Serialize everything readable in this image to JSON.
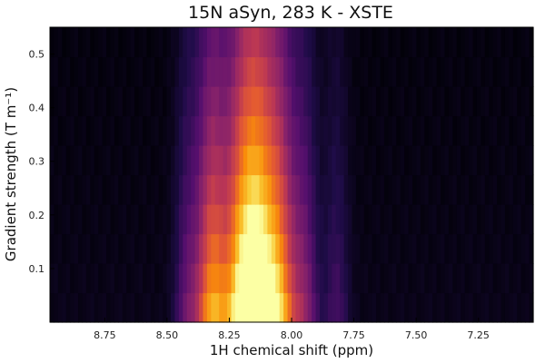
{
  "chart_data": {
    "type": "heatmap",
    "title": "15N aSyn, 283 K - XSTE",
    "xlabel": "1H chemical shift (ppm)",
    "ylabel": "Gradient strength (T m⁻¹)",
    "xlim": [
      8.97,
      7.03
    ],
    "ylim": [
      0.0,
      0.55
    ],
    "x_reversed": true,
    "xticks": [
      8.75,
      8.5,
      8.25,
      8.0,
      7.75,
      7.5,
      7.25
    ],
    "xtick_labels": [
      "8.75",
      "8.50",
      "8.25",
      "8.00",
      "7.75",
      "7.50",
      "7.25"
    ],
    "yticks": [
      0.1,
      0.2,
      0.3,
      0.4,
      0.5
    ],
    "ytick_labels": [
      "0.1",
      "0.2",
      "0.3",
      "0.4",
      "0.5"
    ],
    "gradient_rows": [
      0.0,
      0.055,
      0.11,
      0.165,
      0.22,
      0.275,
      0.33,
      0.385,
      0.44,
      0.495,
      0.55
    ],
    "colormap": "inferno",
    "grid": false,
    "intensity_profile": {
      "peaks_ppm": [
        8.42,
        8.32,
        8.2,
        8.13,
        8.05,
        7.95,
        7.82
      ],
      "peak_heights": [
        0.25,
        0.78,
        0.98,
        0.95,
        0.8,
        0.35,
        0.18
      ],
      "peak_widths_ppm": [
        0.035,
        0.045,
        0.05,
        0.045,
        0.045,
        0.04,
        0.035
      ],
      "decay_per_T_per_m": 2.2,
      "baseline": 0.03
    }
  }
}
